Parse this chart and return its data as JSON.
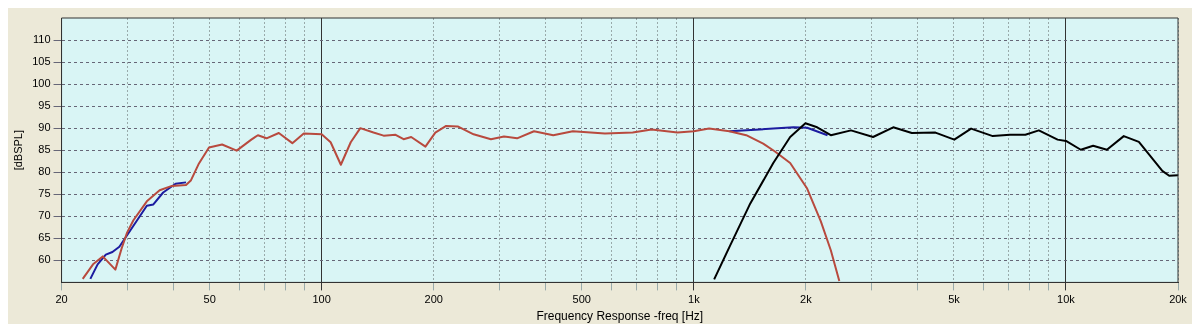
{
  "chart_data": {
    "type": "line",
    "xlabel": "Frequency Response -freq [Hz]",
    "ylabel": "[dBSPL]",
    "log": "x",
    "grid": true,
    "xlim": [
      20,
      20000
    ],
    "ylim": [
      55,
      115
    ],
    "xticks": [
      20,
      {
        "value": 30,
        "label": null
      },
      {
        "value": 40,
        "label": null
      },
      50,
      {
        "value": 60,
        "label": null
      },
      {
        "value": 70,
        "label": null
      },
      {
        "value": 80,
        "label": null
      },
      {
        "value": 90,
        "label": null
      },
      100,
      200,
      {
        "value": 300,
        "label": null
      },
      {
        "value": 400,
        "label": null
      },
      500,
      {
        "value": 600,
        "label": null
      },
      {
        "value": 700,
        "label": null
      },
      {
        "value": 800,
        "label": null
      },
      {
        "value": 900,
        "label": null
      },
      {
        "value": 1000,
        "label": "1k"
      },
      {
        "value": 2000,
        "label": "2k"
      },
      {
        "value": 3000,
        "label": null
      },
      {
        "value": 4000,
        "label": null
      },
      {
        "value": 5000,
        "label": "5k"
      },
      {
        "value": 6000,
        "label": null
      },
      {
        "value": 7000,
        "label": null
      },
      {
        "value": 8000,
        "label": null
      },
      {
        "value": 9000,
        "label": null
      },
      {
        "value": 10000,
        "label": "10k"
      },
      {
        "value": 20000,
        "label": "20k"
      }
    ],
    "yticks": [
      60,
      65,
      70,
      75,
      80,
      85,
      90,
      95,
      100,
      105,
      110
    ],
    "series": [
      {
        "color": "#1c1ca0",
        "x": [
          23.9,
          25,
          26.3,
          27.4,
          28.6,
          33.9,
          35.3,
          37.5,
          40.5,
          43.2,
          100,
          1246,
          1635,
          1853,
          2016,
          2287
        ],
        "values": [
          55.8,
          59.1,
          61.3,
          61.9,
          63.1,
          72.4,
          72.7,
          75.4,
          77.4,
          77.7,
          null,
          89.3,
          89.9,
          90.2,
          90.1,
          88.4
        ]
      },
      {
        "color": "#b84a3e",
        "x": [
          22.8,
          24.3,
          25.8,
          27.9,
          29,
          30,
          31.2,
          33.9,
          36.7,
          39.6,
          43.2,
          44.5,
          46.8,
          49.8,
          54,
          59.1,
          64.7,
          67.4,
          71.1,
          76.7,
          83.4,
          89.5,
          100,
          105.7,
          112.6,
          119.7,
          127,
          137.8,
          146.7,
          158,
          166,
          174,
          190,
          202,
          216,
          232,
          256,
          285,
          309,
          335,
          372,
          419,
          473,
          577,
          685,
          770,
          904,
          1000,
          1099,
          1246,
          1383,
          1536,
          1652,
          1815,
          2016,
          2193,
          2334,
          2460
        ],
        "values": [
          55.8,
          59.1,
          60.9,
          57.9,
          62.7,
          66.3,
          69.1,
          73.4,
          75.9,
          76.9,
          77.1,
          78.1,
          82,
          85.6,
          86.3,
          84.9,
          87.4,
          88.4,
          87.7,
          88.9,
          86.6,
          88.8,
          88.6,
          86.8,
          81.7,
          86.8,
          90,
          89,
          88.3,
          88.5,
          87.5,
          88,
          85.8,
          89,
          90.5,
          90.4,
          88.6,
          87.5,
          88.1,
          87.7,
          89.3,
          88.4,
          89.3,
          88.8,
          89,
          89.7,
          89,
          89.3,
          89.9,
          89.3,
          88.4,
          86.5,
          84.7,
          82.1,
          76.3,
          68.9,
          62.3,
          55.3
        ]
      },
      {
        "color": "#000000",
        "x": [
          1134,
          1246,
          1412,
          1635,
          1815,
          1995,
          2145,
          2334,
          2644,
          3031,
          3434,
          3853,
          4460,
          5010,
          5560,
          6358,
          7071,
          7778,
          8454,
          9493,
          10000,
          10960,
          11830,
          12880,
          14300,
          15700,
          18150,
          18940,
          20000
        ],
        "values": [
          55.7,
          63,
          72.6,
          82.1,
          88,
          91.1,
          90.2,
          88.4,
          89.5,
          88,
          90.2,
          88.9,
          89,
          87.4,
          89.9,
          88.2,
          88.5,
          88.5,
          89.5,
          87.4,
          87.1,
          85.1,
          86,
          85.1,
          88.2,
          86.9,
          80.3,
          79.2,
          79.3
        ]
      }
    ]
  }
}
